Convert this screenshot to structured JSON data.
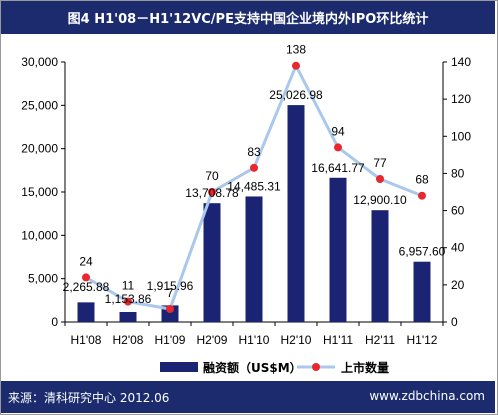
{
  "chart_data": {
    "type": "bar+line",
    "title": "图4 H1'08－H1'12VC/PE支持中国企业境内外IPO环比统计",
    "categories": [
      "H1'08",
      "H2'08",
      "H1'09",
      "H2'09",
      "H1'10",
      "H2'10",
      "H1'11",
      "H2'11",
      "H1'12"
    ],
    "series": [
      {
        "name": "融资额（US$M）",
        "kind": "bar",
        "axis": "left",
        "color": "#1b2373",
        "values": [
          2265.88,
          1153.86,
          1915.96,
          13708.78,
          14485.31,
          25026.98,
          16641.77,
          12900.1,
          6957.6
        ],
        "labels": [
          "2,265.88",
          "1,153.86",
          "1,915.96",
          "13,708.78",
          "14,485.31",
          "25,026.98",
          "16,641.77",
          "12,900.10",
          "6,957.60"
        ]
      },
      {
        "name": "上市数量",
        "kind": "line",
        "axis": "right",
        "line_color": "#a9c8ec",
        "marker_color": "#e8282f",
        "values": [
          24,
          11,
          7,
          70,
          83,
          138,
          94,
          77,
          68
        ],
        "labels": [
          "24",
          "11",
          "7",
          "70",
          "83",
          "138",
          "94",
          "77",
          "68"
        ]
      }
    ],
    "y_left": {
      "min": 0,
      "max": 30000,
      "ticks": [
        "0",
        "5,000",
        "10,000",
        "15,000",
        "20,000",
        "25,000",
        "30,000"
      ]
    },
    "y_right": {
      "min": 0,
      "max": 140,
      "ticks": [
        "0",
        "20",
        "40",
        "60",
        "80",
        "100",
        "120",
        "140"
      ]
    },
    "grid": false,
    "legend_position": "bottom"
  },
  "footer": {
    "source": "来源：清科研究中心 2012.06",
    "site": "www.zdbchina.com"
  }
}
